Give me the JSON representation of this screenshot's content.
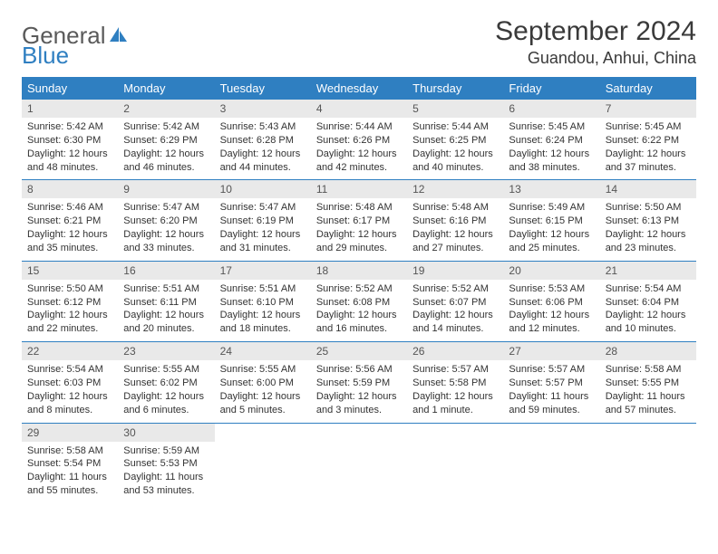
{
  "logo": {
    "word1": "General",
    "word2": "Blue",
    "icon_color": "#2f7fc1"
  },
  "colors": {
    "header_bg": "#2f7fc1",
    "header_text": "#ffffff",
    "daynum_bg": "#e9e9e9",
    "daynum_text": "#555555",
    "body_text": "#333333",
    "row_border": "#2f7fc1",
    "page_bg": "#ffffff"
  },
  "typography": {
    "month_title_fontsize": 30,
    "location_fontsize": 18,
    "weekday_fontsize": 13,
    "daynum_fontsize": 12,
    "cell_fontsize": 11
  },
  "title": {
    "month": "September 2024",
    "location": "Guandou, Anhui, China"
  },
  "weekdays": [
    "Sunday",
    "Monday",
    "Tuesday",
    "Wednesday",
    "Thursday",
    "Friday",
    "Saturday"
  ],
  "calendar": {
    "type": "table",
    "columns": 7,
    "rows": 5,
    "days": [
      {
        "n": "1",
        "sunrise": "5:42 AM",
        "sunset": "6:30 PM",
        "daylight": "12 hours and 48 minutes."
      },
      {
        "n": "2",
        "sunrise": "5:42 AM",
        "sunset": "6:29 PM",
        "daylight": "12 hours and 46 minutes."
      },
      {
        "n": "3",
        "sunrise": "5:43 AM",
        "sunset": "6:28 PM",
        "daylight": "12 hours and 44 minutes."
      },
      {
        "n": "4",
        "sunrise": "5:44 AM",
        "sunset": "6:26 PM",
        "daylight": "12 hours and 42 minutes."
      },
      {
        "n": "5",
        "sunrise": "5:44 AM",
        "sunset": "6:25 PM",
        "daylight": "12 hours and 40 minutes."
      },
      {
        "n": "6",
        "sunrise": "5:45 AM",
        "sunset": "6:24 PM",
        "daylight": "12 hours and 38 minutes."
      },
      {
        "n": "7",
        "sunrise": "5:45 AM",
        "sunset": "6:22 PM",
        "daylight": "12 hours and 37 minutes."
      },
      {
        "n": "8",
        "sunrise": "5:46 AM",
        "sunset": "6:21 PM",
        "daylight": "12 hours and 35 minutes."
      },
      {
        "n": "9",
        "sunrise": "5:47 AM",
        "sunset": "6:20 PM",
        "daylight": "12 hours and 33 minutes."
      },
      {
        "n": "10",
        "sunrise": "5:47 AM",
        "sunset": "6:19 PM",
        "daylight": "12 hours and 31 minutes."
      },
      {
        "n": "11",
        "sunrise": "5:48 AM",
        "sunset": "6:17 PM",
        "daylight": "12 hours and 29 minutes."
      },
      {
        "n": "12",
        "sunrise": "5:48 AM",
        "sunset": "6:16 PM",
        "daylight": "12 hours and 27 minutes."
      },
      {
        "n": "13",
        "sunrise": "5:49 AM",
        "sunset": "6:15 PM",
        "daylight": "12 hours and 25 minutes."
      },
      {
        "n": "14",
        "sunrise": "5:50 AM",
        "sunset": "6:13 PM",
        "daylight": "12 hours and 23 minutes."
      },
      {
        "n": "15",
        "sunrise": "5:50 AM",
        "sunset": "6:12 PM",
        "daylight": "12 hours and 22 minutes."
      },
      {
        "n": "16",
        "sunrise": "5:51 AM",
        "sunset": "6:11 PM",
        "daylight": "12 hours and 20 minutes."
      },
      {
        "n": "17",
        "sunrise": "5:51 AM",
        "sunset": "6:10 PM",
        "daylight": "12 hours and 18 minutes."
      },
      {
        "n": "18",
        "sunrise": "5:52 AM",
        "sunset": "6:08 PM",
        "daylight": "12 hours and 16 minutes."
      },
      {
        "n": "19",
        "sunrise": "5:52 AM",
        "sunset": "6:07 PM",
        "daylight": "12 hours and 14 minutes."
      },
      {
        "n": "20",
        "sunrise": "5:53 AM",
        "sunset": "6:06 PM",
        "daylight": "12 hours and 12 minutes."
      },
      {
        "n": "21",
        "sunrise": "5:54 AM",
        "sunset": "6:04 PM",
        "daylight": "12 hours and 10 minutes."
      },
      {
        "n": "22",
        "sunrise": "5:54 AM",
        "sunset": "6:03 PM",
        "daylight": "12 hours and 8 minutes."
      },
      {
        "n": "23",
        "sunrise": "5:55 AM",
        "sunset": "6:02 PM",
        "daylight": "12 hours and 6 minutes."
      },
      {
        "n": "24",
        "sunrise": "5:55 AM",
        "sunset": "6:00 PM",
        "daylight": "12 hours and 5 minutes."
      },
      {
        "n": "25",
        "sunrise": "5:56 AM",
        "sunset": "5:59 PM",
        "daylight": "12 hours and 3 minutes."
      },
      {
        "n": "26",
        "sunrise": "5:57 AM",
        "sunset": "5:58 PM",
        "daylight": "12 hours and 1 minute."
      },
      {
        "n": "27",
        "sunrise": "5:57 AM",
        "sunset": "5:57 PM",
        "daylight": "11 hours and 59 minutes."
      },
      {
        "n": "28",
        "sunrise": "5:58 AM",
        "sunset": "5:55 PM",
        "daylight": "11 hours and 57 minutes."
      },
      {
        "n": "29",
        "sunrise": "5:58 AM",
        "sunset": "5:54 PM",
        "daylight": "11 hours and 55 minutes."
      },
      {
        "n": "30",
        "sunrise": "5:59 AM",
        "sunset": "5:53 PM",
        "daylight": "11 hours and 53 minutes."
      }
    ]
  },
  "labels": {
    "sunrise": "Sunrise: ",
    "sunset": "Sunset: ",
    "daylight": "Daylight: "
  }
}
